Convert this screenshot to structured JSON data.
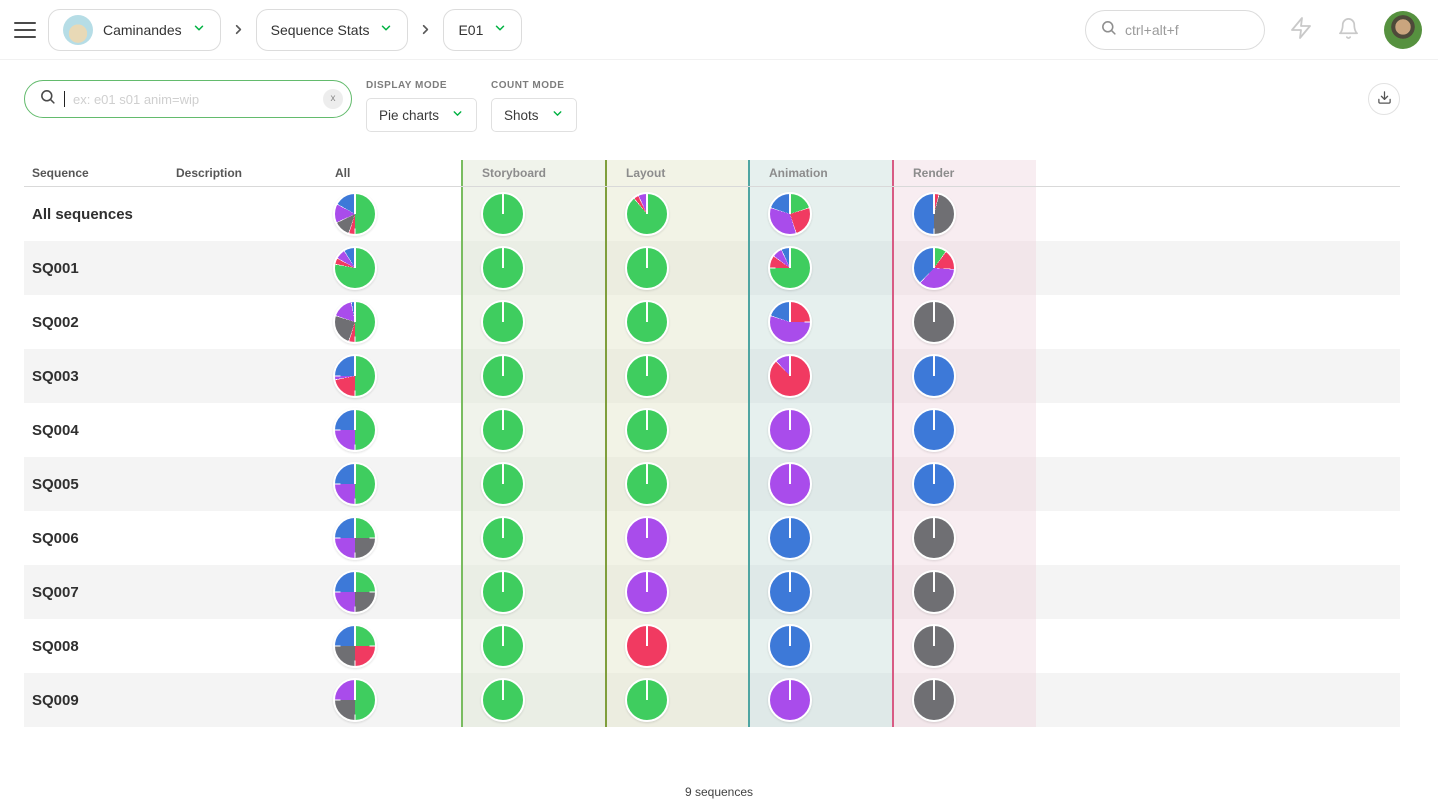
{
  "topbar": {
    "breadcrumb": {
      "production": "Caminandes",
      "page": "Sequence Stats",
      "episode": "E01"
    },
    "search_placeholder": "ctrl+alt+f"
  },
  "filters": {
    "search_placeholder": "ex: e01 s01 anim=wip",
    "clear_label": "x",
    "display_mode": {
      "label": "DISPLAY MODE",
      "value": "Pie charts"
    },
    "count_mode": {
      "label": "COUNT MODE",
      "value": "Shots"
    }
  },
  "table": {
    "headers": [
      "Sequence",
      "Description",
      "All",
      "Storyboard",
      "Layout",
      "Animation",
      "Render"
    ],
    "status_colors": {
      "done": "#3fcd5f",
      "wip": "#3d79d8",
      "wfa": "#a94ceb",
      "retake": "#f13a61",
      "todo": "#6f6f73"
    },
    "column_accents": {
      "storyboard": "#79bc60",
      "layout": "#7f9e3c",
      "animation": "#4fa5a2",
      "render": "#d85b84"
    },
    "rows": [
      {
        "label": "All sequences",
        "description": "",
        "pies": {
          "all": [
            [
              "done",
              50
            ],
            [
              "retake",
              5
            ],
            [
              "todo",
              13
            ],
            [
              "wfa",
              15
            ],
            [
              "wip",
              17
            ]
          ],
          "storyboard": [
            [
              "done",
              100
            ]
          ],
          "layout": [
            [
              "done",
              89
            ],
            [
              "retake",
              4
            ],
            [
              "wfa",
              7
            ]
          ],
          "animation": [
            [
              "done",
              20
            ],
            [
              "retake",
              25
            ],
            [
              "wfa",
              35
            ],
            [
              "wip",
              20
            ]
          ],
          "render": [
            [
              "retake",
              4
            ],
            [
              "todo",
              46
            ],
            [
              "wip",
              50
            ]
          ]
        }
      },
      {
        "label": "SQ001",
        "description": "",
        "pies": {
          "all": [
            [
              "done",
              78
            ],
            [
              "retake",
              5
            ],
            [
              "wfa",
              8
            ],
            [
              "wip",
              9
            ]
          ],
          "storyboard": [
            [
              "done",
              100
            ]
          ],
          "layout": [
            [
              "done",
              100
            ]
          ],
          "animation": [
            [
              "done",
              75
            ],
            [
              "retake",
              10
            ],
            [
              "wfa",
              8
            ],
            [
              "wip",
              7
            ]
          ],
          "render": [
            [
              "done",
              10
            ],
            [
              "retake",
              16
            ],
            [
              "wfa",
              36
            ],
            [
              "wip",
              38
            ]
          ]
        }
      },
      {
        "label": "SQ002",
        "description": "",
        "pies": {
          "all": [
            [
              "done",
              50
            ],
            [
              "retake",
              5
            ],
            [
              "todo",
              25
            ],
            [
              "wfa",
              17
            ],
            [
              "wip",
              3
            ]
          ],
          "storyboard": [
            [
              "done",
              100
            ]
          ],
          "layout": [
            [
              "done",
              100
            ]
          ],
          "animation": [
            [
              "retake",
              25
            ],
            [
              "wfa",
              55
            ],
            [
              "wip",
              20
            ]
          ],
          "render": [
            [
              "todo",
              100
            ]
          ]
        }
      },
      {
        "label": "SQ003",
        "description": "",
        "pies": {
          "all": [
            [
              "done",
              50
            ],
            [
              "retake",
              22
            ],
            [
              "wfa",
              3
            ],
            [
              "wip",
              25
            ]
          ],
          "storyboard": [
            [
              "done",
              100
            ]
          ],
          "layout": [
            [
              "done",
              100
            ]
          ],
          "animation": [
            [
              "retake",
              88
            ],
            [
              "wfa",
              12
            ]
          ],
          "render": [
            [
              "wip",
              100
            ]
          ]
        }
      },
      {
        "label": "SQ004",
        "description": "",
        "pies": {
          "all": [
            [
              "done",
              50
            ],
            [
              "wfa",
              25
            ],
            [
              "wip",
              25
            ]
          ],
          "storyboard": [
            [
              "done",
              100
            ]
          ],
          "layout": [
            [
              "done",
              100
            ]
          ],
          "animation": [
            [
              "wfa",
              100
            ]
          ],
          "render": [
            [
              "wip",
              100
            ]
          ]
        }
      },
      {
        "label": "SQ005",
        "description": "",
        "pies": {
          "all": [
            [
              "done",
              50
            ],
            [
              "wfa",
              25
            ],
            [
              "wip",
              25
            ]
          ],
          "storyboard": [
            [
              "done",
              100
            ]
          ],
          "layout": [
            [
              "done",
              100
            ]
          ],
          "animation": [
            [
              "wfa",
              100
            ]
          ],
          "render": [
            [
              "wip",
              100
            ]
          ]
        }
      },
      {
        "label": "SQ006",
        "description": "",
        "pies": {
          "all": [
            [
              "done",
              25
            ],
            [
              "todo",
              25
            ],
            [
              "wfa",
              25
            ],
            [
              "wip",
              25
            ]
          ],
          "storyboard": [
            [
              "done",
              100
            ]
          ],
          "layout": [
            [
              "wfa",
              100
            ]
          ],
          "animation": [
            [
              "wip",
              100
            ]
          ],
          "render": [
            [
              "todo",
              100
            ]
          ]
        }
      },
      {
        "label": "SQ007",
        "description": "",
        "pies": {
          "all": [
            [
              "done",
              25
            ],
            [
              "todo",
              25
            ],
            [
              "wfa",
              25
            ],
            [
              "wip",
              25
            ]
          ],
          "storyboard": [
            [
              "done",
              100
            ]
          ],
          "layout": [
            [
              "wfa",
              100
            ]
          ],
          "animation": [
            [
              "wip",
              100
            ]
          ],
          "render": [
            [
              "todo",
              100
            ]
          ]
        }
      },
      {
        "label": "SQ008",
        "description": "",
        "pies": {
          "all": [
            [
              "done",
              25
            ],
            [
              "retake",
              25
            ],
            [
              "todo",
              25
            ],
            [
              "wip",
              25
            ]
          ],
          "storyboard": [
            [
              "done",
              100
            ]
          ],
          "layout": [
            [
              "retake",
              100
            ]
          ],
          "animation": [
            [
              "wip",
              100
            ]
          ],
          "render": [
            [
              "todo",
              100
            ]
          ]
        }
      },
      {
        "label": "SQ009",
        "description": "",
        "pies": {
          "all": [
            [
              "done",
              50
            ],
            [
              "todo",
              25
            ],
            [
              "wfa",
              25
            ]
          ],
          "storyboard": [
            [
              "done",
              100
            ]
          ],
          "layout": [
            [
              "done",
              100
            ]
          ],
          "animation": [
            [
              "wfa",
              100
            ]
          ],
          "render": [
            [
              "todo",
              100
            ]
          ]
        }
      }
    ]
  },
  "footer": {
    "count_label": "9 sequences"
  }
}
